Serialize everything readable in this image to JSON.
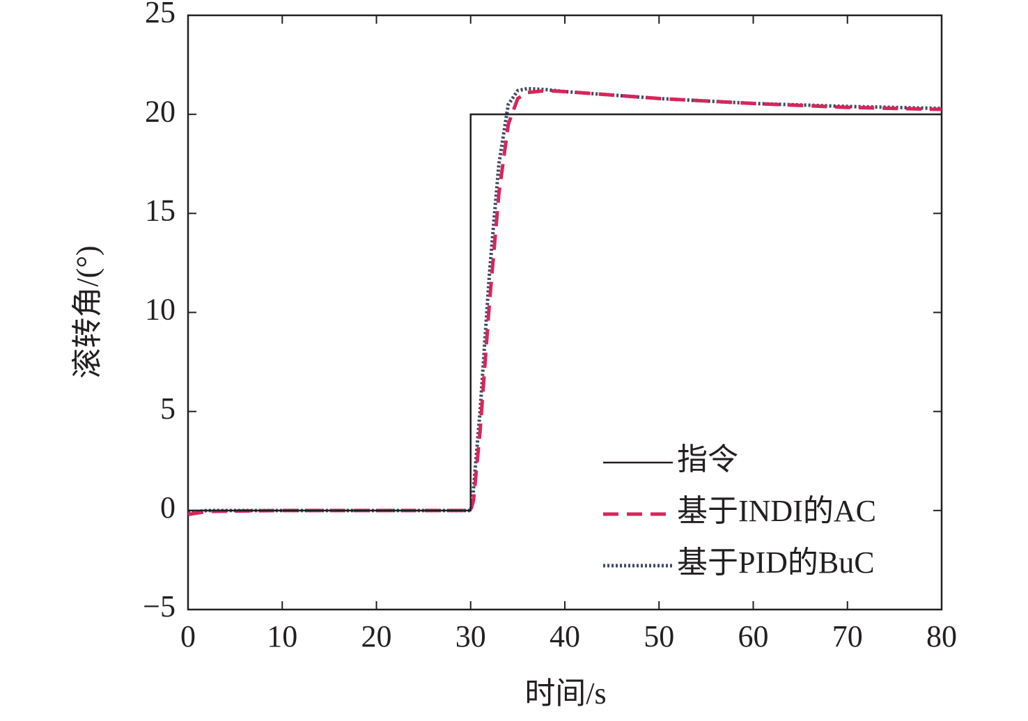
{
  "chart_data": {
    "type": "line",
    "x_label": "时间/s",
    "y_label": "滚转角/(°)",
    "xlim": [
      0,
      80
    ],
    "xticks": [
      0,
      10,
      20,
      30,
      40,
      50,
      60,
      70,
      80
    ],
    "ylim": [
      -5,
      25
    ],
    "yticks": [
      {
        "value": -5,
        "label": "−5"
      },
      0,
      5,
      10,
      15,
      20,
      25
    ],
    "legend": "lower right",
    "series": [
      {
        "name": "指令",
        "color": "#231f20",
        "style": "solid",
        "x": [
          0,
          30,
          30,
          80
        ],
        "values": [
          0,
          0,
          20,
          20
        ]
      },
      {
        "name": "基于INDI的AC",
        "color": "#d9255a",
        "style": "dashed",
        "x": [
          0,
          2,
          10,
          20,
          30,
          30.3,
          31,
          32,
          33,
          34,
          35,
          36,
          38,
          40,
          50,
          60,
          70,
          80
        ],
        "values": [
          -0.2,
          -0.05,
          0,
          0,
          0,
          0.5,
          4,
          10.5,
          16,
          19.5,
          20.8,
          21.1,
          21.2,
          21.15,
          20.8,
          20.55,
          20.35,
          20.25
        ]
      },
      {
        "name": "基于PID的BuC",
        "color": "#3d4a66",
        "style": "dotted",
        "x": [
          0,
          2,
          10,
          20,
          30,
          30.2,
          31,
          32,
          33,
          34,
          35,
          36,
          38,
          40,
          50,
          60,
          70,
          80
        ],
        "values": [
          -0.1,
          0,
          0,
          0,
          0,
          0.5,
          5,
          12,
          17.5,
          20.5,
          21.2,
          21.3,
          21.25,
          21.15,
          20.8,
          20.55,
          20.4,
          20.3
        ]
      }
    ]
  }
}
